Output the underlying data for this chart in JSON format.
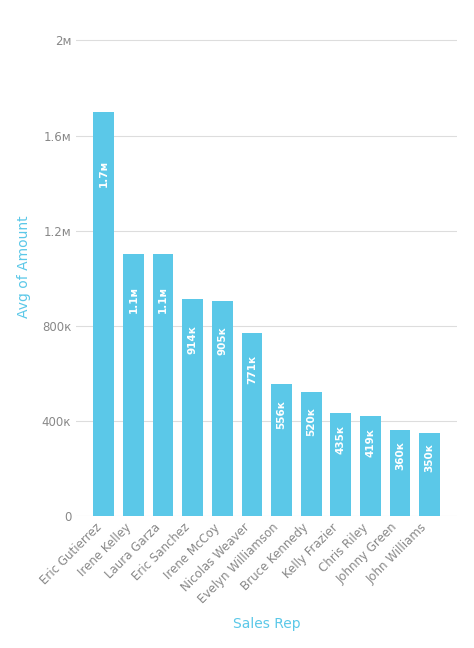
{
  "categories": [
    "Eric Gutierrez",
    "Irene Kelley",
    "Laura Garza",
    "Eric Sanchez",
    "Irene McCoy",
    "Nicolas Weaver",
    "Evelyn Williamson",
    "Bruce Kennedy",
    "Kelly Frazier",
    "Chris Riley",
    "Johnny Green",
    "John Williams"
  ],
  "values": [
    1700000,
    1100000,
    1100000,
    914000,
    905000,
    771000,
    556000,
    520000,
    435000,
    419000,
    360000,
    350000
  ],
  "labels": [
    "1.7м",
    "1.1м",
    "1.1м",
    "914к",
    "905к",
    "771к",
    "556к",
    "520к",
    "435к",
    "419к",
    "360к",
    "350к"
  ],
  "bar_color": "#5BC8E8",
  "background_color": "#FFFFFF",
  "ylabel": "Avg of Amount",
  "xlabel": "Sales Rep",
  "yticks": [
    0,
    400000,
    800000,
    1200000,
    1600000,
    2000000
  ],
  "ytick_labels": [
    "0",
    "400к",
    "800к",
    "1.2м",
    "1.6м",
    "2м"
  ],
  "ylim": [
    0,
    2100000
  ],
  "label_fontsize": 7.5,
  "axis_label_fontsize": 10,
  "tick_fontsize": 8.5,
  "label_color": "#FFFFFF",
  "axis_label_color": "#5BC8E8",
  "tick_color": "#888888",
  "grid_color": "#DDDDDD",
  "spine_color": "#CCCCCC"
}
